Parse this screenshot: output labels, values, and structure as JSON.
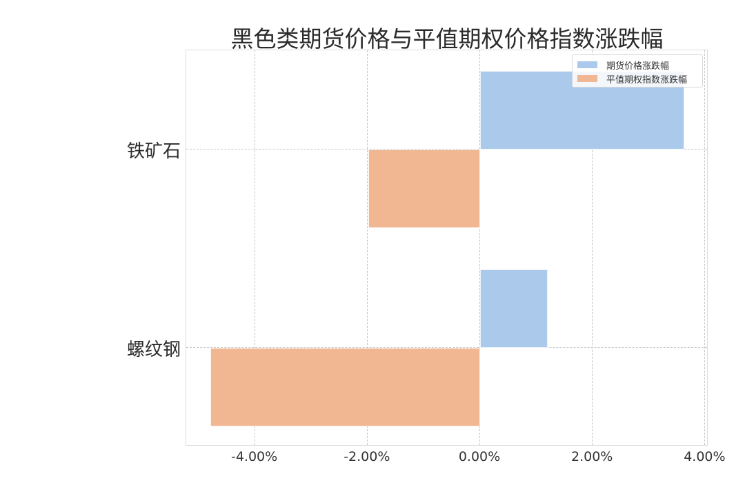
{
  "chart_data": {
    "type": "bar",
    "orientation": "horizontal",
    "title": "黑色类期货价格与平值期权价格指数涨跌幅",
    "categories": [
      "铁矿石",
      "螺纹钢"
    ],
    "series": [
      {
        "name": "期货价格涨跌幅",
        "color": "#abc9eb",
        "values": [
          3.63,
          1.2
        ]
      },
      {
        "name": "平值期权指数涨跌幅",
        "color": "#f0b792",
        "values": [
          -1.99,
          -4.79
        ]
      }
    ],
    "xlabel": "",
    "ylabel": "",
    "xlim": [
      -5.2,
      4.05
    ],
    "xticks": [
      -4,
      -2,
      0,
      2,
      4
    ],
    "xtick_labels": [
      "-4.00%",
      "-2.00%",
      "0.00%",
      "2.00%",
      "4.00%"
    ],
    "grid": true,
    "legend_position": "upper right"
  },
  "legend": {
    "items": [
      "期货价格涨跌幅",
      "平值期权指数涨跌幅"
    ]
  }
}
